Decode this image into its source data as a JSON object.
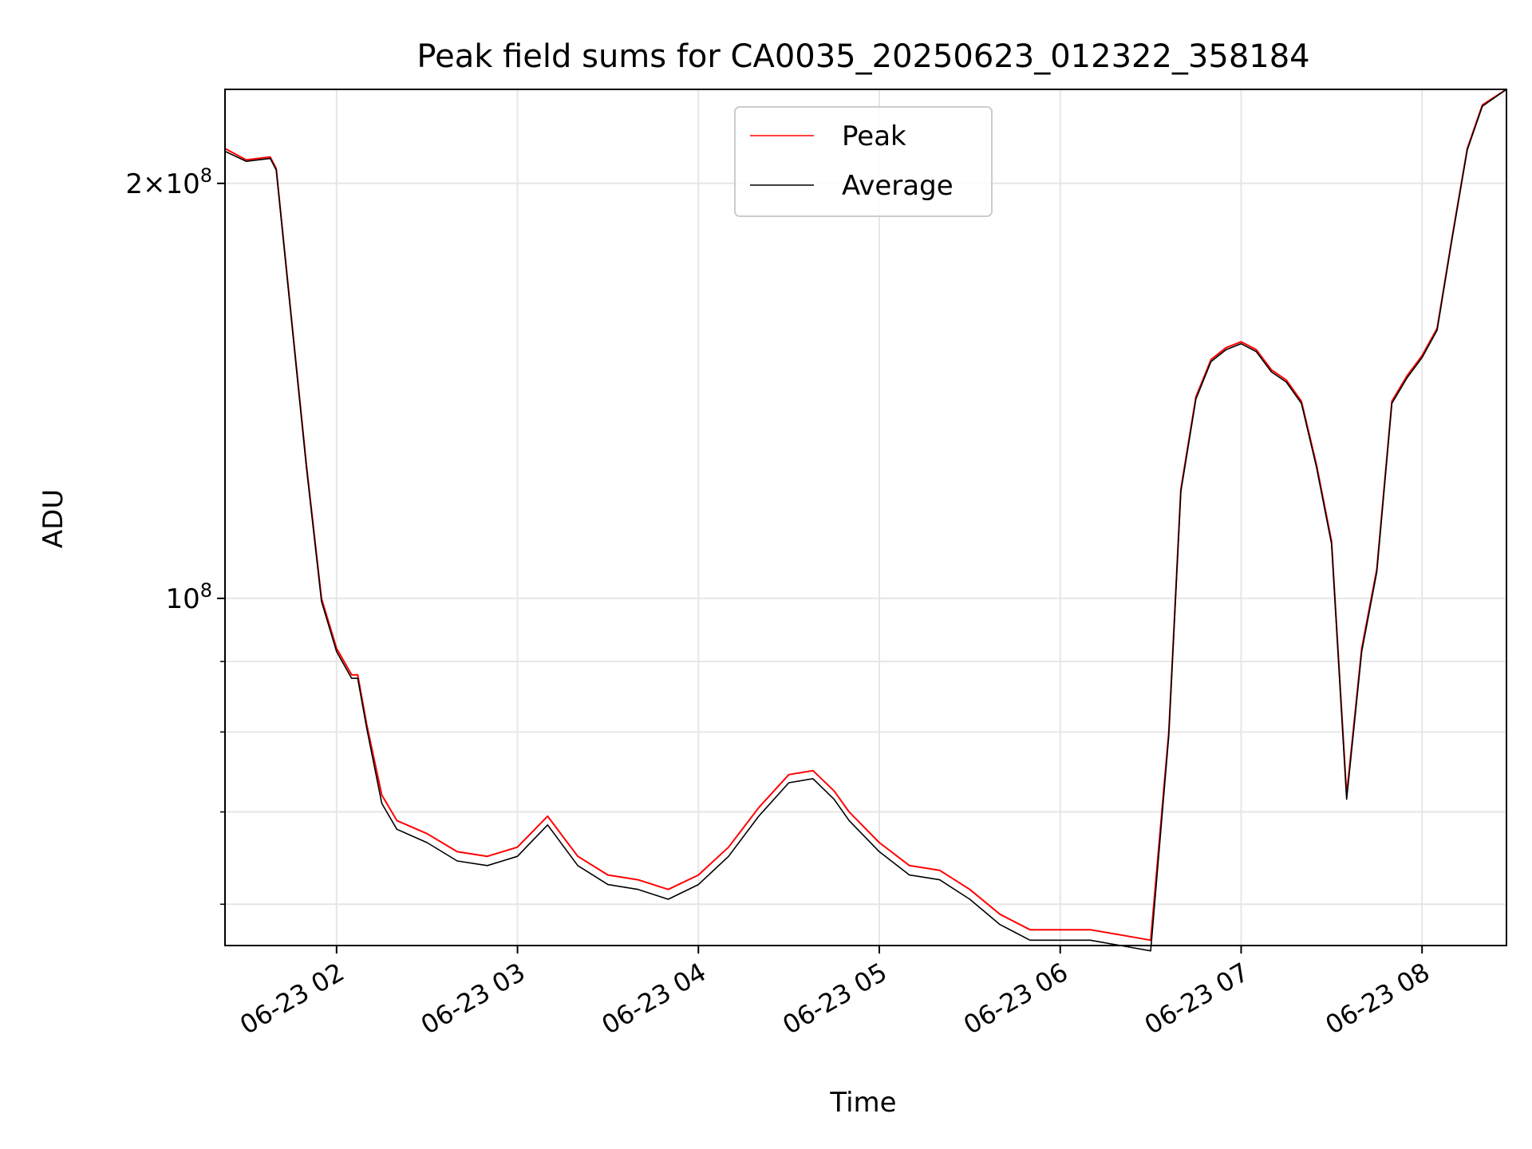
{
  "chart_data": {
    "type": "line",
    "title": "Peak field sums for CA0035_20250623_012322_358184",
    "xlabel": "Time",
    "ylabel": "ADU",
    "yscale": "log",
    "grid": true,
    "legend_position": "upper center",
    "xlim": [
      "06-23 01:23",
      "06-23 08:28"
    ],
    "ylim": [
      56000000,
      234000000
    ],
    "x_ticks": [
      "06-23 02",
      "06-23 03",
      "06-23 04",
      "06-23 05",
      "06-23 06",
      "06-23 07",
      "06-23 08"
    ],
    "y_tick_labels": [
      "10^8",
      "2×10^8"
    ],
    "y_minor_ticks": [
      60000000,
      70000000,
      80000000,
      90000000
    ],
    "x": [
      "01:23",
      "01:30",
      "01:38",
      "01:40",
      "01:45",
      "01:50",
      "01:55",
      "02:00",
      "02:05",
      "02:07",
      "02:10",
      "02:15",
      "02:20",
      "02:30",
      "02:40",
      "02:50",
      "03:00",
      "03:10",
      "03:20",
      "03:30",
      "03:40",
      "03:50",
      "04:00",
      "04:10",
      "04:20",
      "04:30",
      "04:38",
      "04:45",
      "04:50",
      "05:00",
      "05:10",
      "05:20",
      "05:30",
      "05:40",
      "05:50",
      "06:00",
      "06:10",
      "06:20",
      "06:30",
      "06:36",
      "06:40",
      "06:45",
      "06:50",
      "06:55",
      "07:00",
      "07:05",
      "07:10",
      "07:15",
      "07:20",
      "07:25",
      "07:30",
      "07:35",
      "07:40",
      "07:45",
      "07:50",
      "07:55",
      "08:00",
      "08:05",
      "08:10",
      "08:15",
      "08:20",
      "08:28"
    ],
    "series": [
      {
        "name": "Peak",
        "color": "#ff0000",
        "values": [
          212000000,
          208000000,
          209000000,
          205000000,
          160000000,
          125000000,
          100000000,
          92000000,
          88000000,
          88000000,
          81000000,
          72000000,
          69000000,
          67500000,
          65500000,
          65000000,
          66000000,
          69500000,
          65000000,
          63000000,
          62500000,
          61500000,
          63000000,
          66000000,
          70500000,
          74500000,
          75000000,
          72500000,
          70000000,
          66500000,
          64000000,
          63500000,
          61500000,
          59000000,
          57500000,
          57500000,
          57500000,
          57000000,
          56500000,
          80000000,
          120000000,
          140000000,
          149000000,
          152000000,
          153500000,
          151500000,
          146500000,
          144000000,
          139000000,
          125000000,
          110000000,
          72000000,
          92000000,
          105000000,
          139000000,
          145000000,
          150000000,
          157000000,
          183000000,
          212000000,
          228000000,
          234000000
        ]
      },
      {
        "name": "Average",
        "color": "#000000",
        "values": [
          211000000,
          207500000,
          208500000,
          204500000,
          159500000,
          124500000,
          99500000,
          91500000,
          87500000,
          87500000,
          80500000,
          71000000,
          68000000,
          66500000,
          64500000,
          64000000,
          65000000,
          68500000,
          64000000,
          62000000,
          61500000,
          60500000,
          62000000,
          65000000,
          69500000,
          73500000,
          74000000,
          71500000,
          69000000,
          65500000,
          63000000,
          62500000,
          60500000,
          58000000,
          56500000,
          56500000,
          56500000,
          56000000,
          55500000,
          79500000,
          119500000,
          139500000,
          148500000,
          151500000,
          153000000,
          151000000,
          146000000,
          143500000,
          138500000,
          124500000,
          109500000,
          71500000,
          91500000,
          104500000,
          138500000,
          144500000,
          149500000,
          156500000,
          182500000,
          211500000,
          227500000,
          234000000
        ]
      }
    ]
  }
}
